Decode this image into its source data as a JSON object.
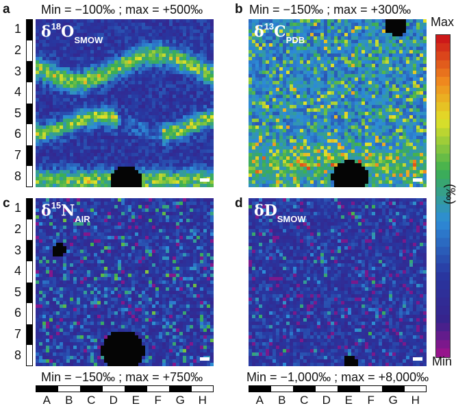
{
  "panels": [
    {
      "letter": "a",
      "minmax": "Min = −100‰ ;  max = +500‰",
      "delta": "δ",
      "sup": "18",
      "base": "O",
      "sub": "SMOW",
      "seed": 11,
      "pattern": "oxygen"
    },
    {
      "letter": "b",
      "minmax": "Min = −150‰ ;  max = +300‰",
      "delta": "δ",
      "sup": "13",
      "base": "C",
      "sub": "PDB",
      "seed": 23,
      "pattern": "carbon"
    },
    {
      "letter": "c",
      "minmax": "Min = −150‰ ;  max = +750‰",
      "delta": "δ",
      "sup": "15",
      "base": "N",
      "sub": "AIR",
      "seed": 37,
      "pattern": "nitrogen"
    },
    {
      "letter": "d",
      "minmax": "Min = −1,000‰ ;  max = +8,000‰",
      "delta": "δ",
      "sup": "",
      "base": "D",
      "sub": "SMOW",
      "seed": 53,
      "pattern": "deuterium"
    }
  ],
  "row_labels": [
    "1",
    "2",
    "3",
    "4",
    "5",
    "6",
    "7",
    "8"
  ],
  "col_labels": [
    "A",
    "B",
    "C",
    "D",
    "E",
    "F",
    "G",
    "H"
  ],
  "colorbar": {
    "max_label": "Max",
    "min_label": "Min",
    "unit_label": "(‰)"
  },
  "colors": {
    "background": "#2838a0",
    "text": "#111111"
  }
}
